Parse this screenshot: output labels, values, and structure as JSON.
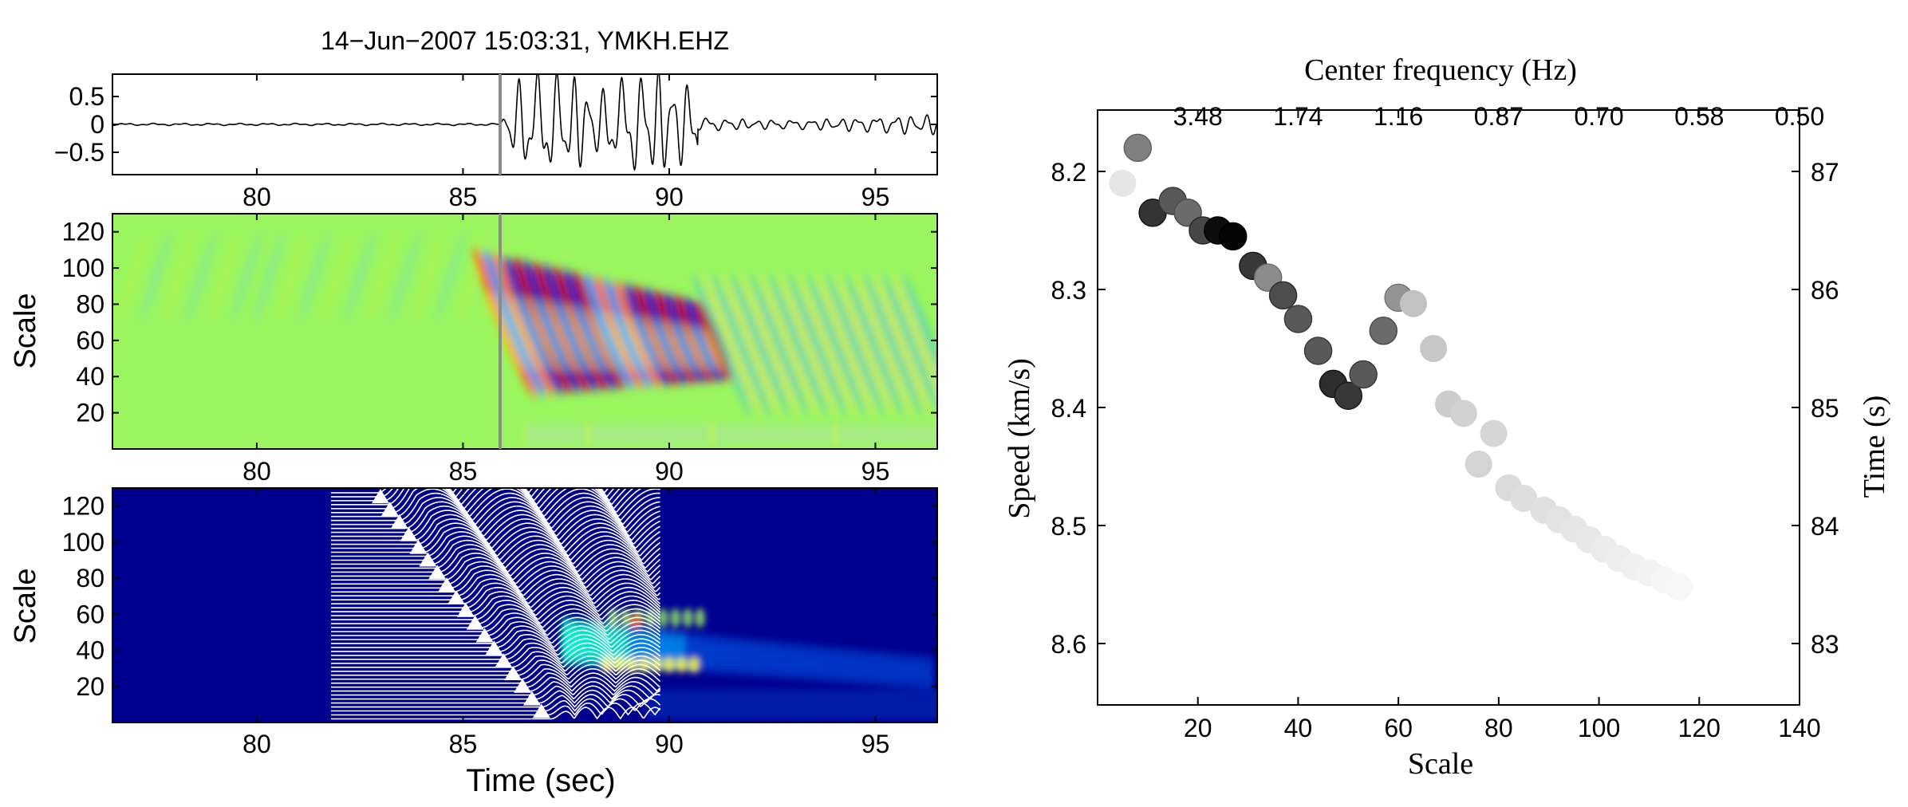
{
  "left": {
    "title": "14−Jun−2007 15:03:31, YMKH.EHZ",
    "xlabel": "Time (sec)",
    "x_ticks": [
      80,
      85,
      90,
      95
    ],
    "x_range": [
      76.5,
      96.5
    ],
    "onset_time": 85.9,
    "stack_window": [
      81.8,
      89.8
    ],
    "seismogram": {
      "y_ticks": [
        "0.5",
        "0",
        "−0.5"
      ],
      "y_values": [
        0.5,
        0,
        -0.5
      ],
      "ylim": [
        -0.9,
        0.9
      ]
    },
    "cwt": {
      "ylabel": "Scale",
      "y_ticks": [
        20,
        40,
        60,
        80,
        100,
        120
      ],
      "ylim": [
        0,
        130
      ]
    },
    "power": {
      "ylabel": "Scale",
      "y_ticks": [
        20,
        40,
        60,
        80,
        100,
        120
      ],
      "ylim": [
        0,
        130
      ]
    }
  },
  "chart_data": {
    "type": "scatter",
    "title": "",
    "xlabel": "Scale",
    "ylabel": "Speed (km/s)",
    "y2label": "Time (s)",
    "top_xlabel": "Center frequency (Hz)",
    "xlim": [
      0,
      140
    ],
    "ylim": [
      8.148,
      8.652
    ],
    "x_ticks": [
      20,
      40,
      60,
      80,
      100,
      120,
      140
    ],
    "y_ticks": [
      8.2,
      8.3,
      8.4,
      8.5,
      8.6
    ],
    "y2_ticks": [
      87,
      86,
      85,
      84,
      83
    ],
    "top_ticks": [
      {
        "label": "3.48",
        "scale": 20
      },
      {
        "label": "1.74",
        "scale": 40
      },
      {
        "label": "1.16",
        "scale": 60
      },
      {
        "label": "0.87",
        "scale": 80
      },
      {
        "label": "0.70",
        "scale": 100
      },
      {
        "label": "0.58",
        "scale": 120
      },
      {
        "label": "0.50",
        "scale": 140
      }
    ],
    "points": [
      {
        "x": 5,
        "y": 8.21,
        "gray": 0.9
      },
      {
        "x": 8,
        "y": 8.18,
        "gray": 0.5
      },
      {
        "x": 11,
        "y": 8.235,
        "gray": 0.2
      },
      {
        "x": 15,
        "y": 8.225,
        "gray": 0.35
      },
      {
        "x": 18,
        "y": 8.235,
        "gray": 0.42
      },
      {
        "x": 21,
        "y": 8.25,
        "gray": 0.28
      },
      {
        "x": 24,
        "y": 8.25,
        "gray": 0.05
      },
      {
        "x": 27,
        "y": 8.255,
        "gray": 0.02
      },
      {
        "x": 31,
        "y": 8.28,
        "gray": 0.22
      },
      {
        "x": 34,
        "y": 8.29,
        "gray": 0.55
      },
      {
        "x": 37,
        "y": 8.305,
        "gray": 0.3
      },
      {
        "x": 40,
        "y": 8.325,
        "gray": 0.35
      },
      {
        "x": 44,
        "y": 8.352,
        "gray": 0.35
      },
      {
        "x": 47,
        "y": 8.38,
        "gray": 0.18
      },
      {
        "x": 50,
        "y": 8.39,
        "gray": 0.22
      },
      {
        "x": 53,
        "y": 8.372,
        "gray": 0.35
      },
      {
        "x": 57,
        "y": 8.335,
        "gray": 0.42
      },
      {
        "x": 60,
        "y": 8.307,
        "gray": 0.58
      },
      {
        "x": 63,
        "y": 8.312,
        "gray": 0.76
      },
      {
        "x": 67,
        "y": 8.35,
        "gray": 0.78
      },
      {
        "x": 70,
        "y": 8.397,
        "gray": 0.8
      },
      {
        "x": 73,
        "y": 8.405,
        "gray": 0.82
      },
      {
        "x": 76,
        "y": 8.448,
        "gray": 0.83
      },
      {
        "x": 79,
        "y": 8.422,
        "gray": 0.84
      },
      {
        "x": 82,
        "y": 8.468,
        "gray": 0.86
      },
      {
        "x": 85,
        "y": 8.477,
        "gray": 0.87
      },
      {
        "x": 89,
        "y": 8.487,
        "gray": 0.88
      },
      {
        "x": 92,
        "y": 8.495,
        "gray": 0.89
      },
      {
        "x": 95,
        "y": 8.503,
        "gray": 0.9
      },
      {
        "x": 98,
        "y": 8.512,
        "gray": 0.91
      },
      {
        "x": 101,
        "y": 8.52,
        "gray": 0.92
      },
      {
        "x": 104,
        "y": 8.528,
        "gray": 0.93
      },
      {
        "x": 107,
        "y": 8.535,
        "gray": 0.94
      },
      {
        "x": 110,
        "y": 8.54,
        "gray": 0.95
      },
      {
        "x": 113,
        "y": 8.546,
        "gray": 0.96
      },
      {
        "x": 116,
        "y": 8.552,
        "gray": 0.965
      }
    ]
  },
  "colors": {
    "axis": "#000000",
    "onset_line": "#8c8c8c",
    "jet_background": "#9af55f",
    "power_background": "#00008f",
    "trace": "#ffffff"
  }
}
